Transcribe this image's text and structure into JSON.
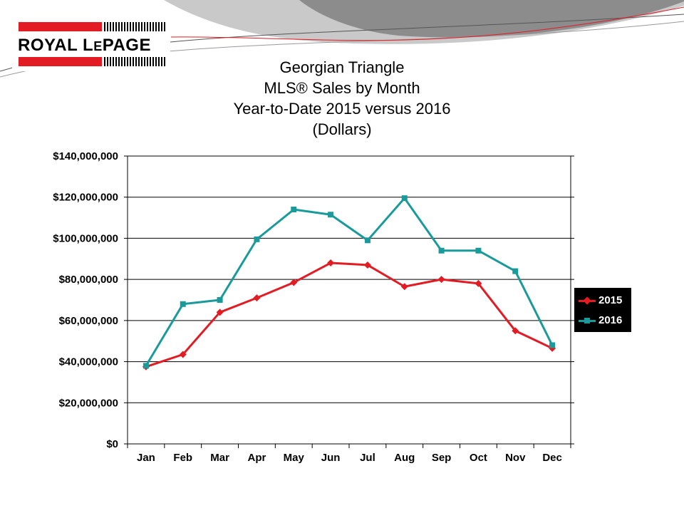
{
  "logo": {
    "text_left": "ROYAL L",
    "text_small": "E",
    "text_right": "PAGE",
    "accent": "#e31b23"
  },
  "title_lines": [
    "Georgian Triangle",
    "MLS® Sales by Month",
    "Year-to-Date 2015 versus 2016",
    "(Dollars)"
  ],
  "colors": {
    "series_2015": "#e31b23",
    "series_2016": "#1a9a9a",
    "grid": "#000000",
    "header_band": "#8c8c8c"
  },
  "chart_data": {
    "type": "line",
    "title": "Georgian Triangle MLS® Sales by Month Year-to-Date 2015 versus 2016 (Dollars)",
    "categories": [
      "Jan",
      "Feb",
      "Mar",
      "Apr",
      "May",
      "Jun",
      "Jul",
      "Aug",
      "Sep",
      "Oct",
      "Nov",
      "Dec"
    ],
    "ylim": [
      0,
      140000000
    ],
    "yticks": [
      0,
      20000000,
      40000000,
      60000000,
      80000000,
      100000000,
      120000000,
      140000000
    ],
    "ytick_labels": [
      "$0",
      "$20,000,000",
      "$40,000,000",
      "$60,000,000",
      "$80,000,000",
      "$100,000,000",
      "$120,000,000",
      "$140,000,000"
    ],
    "grid": true,
    "legend_position": "right",
    "series": [
      {
        "name": "2015",
        "color": "#e31b23",
        "marker": "diamond",
        "values": [
          37500000,
          43500000,
          64000000,
          71000000,
          78500000,
          88000000,
          87000000,
          76500000,
          80000000,
          78000000,
          55000000,
          46500000
        ]
      },
      {
        "name": "2016",
        "color": "#1a9a9a",
        "marker": "square",
        "values": [
          38000000,
          68000000,
          70000000,
          99500000,
          114000000,
          111500000,
          99000000,
          119500000,
          94000000,
          94000000,
          84000000,
          48000000
        ]
      }
    ]
  }
}
